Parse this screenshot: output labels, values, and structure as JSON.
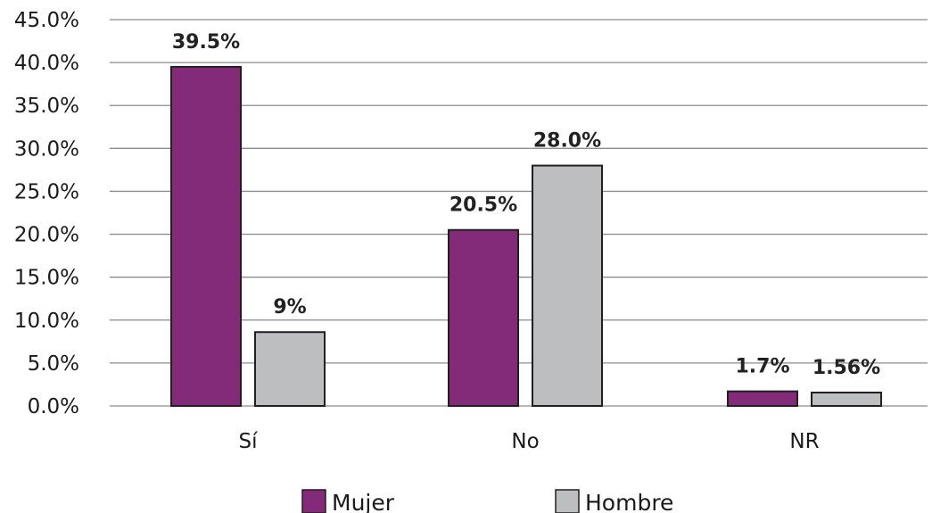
{
  "chart_data": {
    "type": "bar",
    "categories": [
      "Sí",
      "No",
      "NR"
    ],
    "series": [
      {
        "name": "Mujer",
        "values": [
          39.5,
          20.5,
          1.7
        ],
        "labels": [
          "39.5%",
          "20.5%",
          "1.7%"
        ],
        "color": "#832a79"
      },
      {
        "name": "Hombre",
        "values": [
          8.6,
          28.0,
          1.56
        ],
        "labels": [
          "9%",
          "28.0%",
          "1.56%"
        ],
        "color": "#bcbec0"
      }
    ],
    "yticks": [
      "45.0%",
      "40.0%",
      "35.0%",
      "30.0%",
      "25.0%",
      "20.0%",
      "15.0%",
      "10.0%",
      "5.0%",
      "0.0%"
    ],
    "ylim": [
      0,
      45
    ],
    "grid": true,
    "legend_position": "bottom",
    "bar_outline_color": "#231f20",
    "grid_color": "#8c8c8c"
  }
}
